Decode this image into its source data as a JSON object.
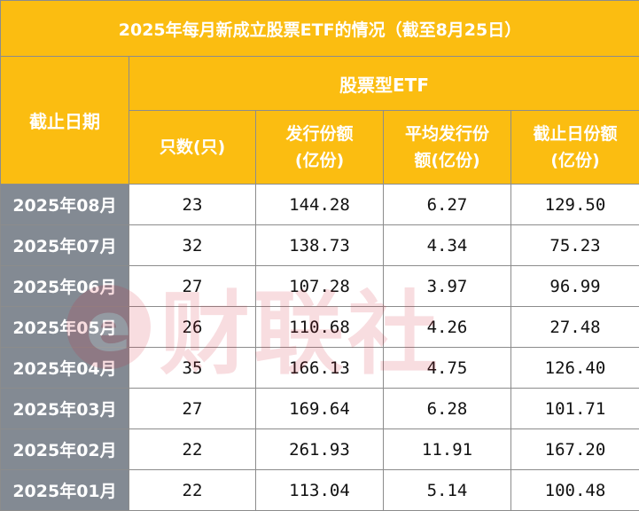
{
  "title": "2025年每月新成立股票ETF的情况（截至8月25日）",
  "headers": {
    "date": "截止日期",
    "group": "股票型ETF",
    "count": "只数(只)",
    "issue_line1": "发行份额",
    "issue_line2": "(亿份)",
    "avg_line1": "平均发行份",
    "avg_line2": "额(亿份)",
    "current_line1": "截止日份额",
    "current_line2": "(亿份)"
  },
  "rows": [
    {
      "date": "2025年08月",
      "count": "23",
      "issue": "144.28",
      "avg": "6.27",
      "current": "129.50"
    },
    {
      "date": "2025年07月",
      "count": "32",
      "issue": "138.73",
      "avg": "4.34",
      "current": "75.23"
    },
    {
      "date": "2025年06月",
      "count": "27",
      "issue": "107.28",
      "avg": "3.97",
      "current": "96.99"
    },
    {
      "date": "2025年05月",
      "count": "26",
      "issue": "110.68",
      "avg": "4.26",
      "current": "27.48"
    },
    {
      "date": "2025年04月",
      "count": "35",
      "issue": "166.13",
      "avg": "4.75",
      "current": "126.40"
    },
    {
      "date": "2025年03月",
      "count": "27",
      "issue": "169.64",
      "avg": "6.28",
      "current": "101.71"
    },
    {
      "date": "2025年02月",
      "count": "22",
      "issue": "261.93",
      "avg": "11.91",
      "current": "167.20"
    },
    {
      "date": "2025年01月",
      "count": "22",
      "issue": "113.04",
      "avg": "5.14",
      "current": "100.48"
    }
  ],
  "watermark": {
    "badge": "e",
    "text": "财联社"
  },
  "colors": {
    "header_bg": "#fbbd11",
    "date_bg": "#838a93",
    "watermark": "#d0192d"
  }
}
